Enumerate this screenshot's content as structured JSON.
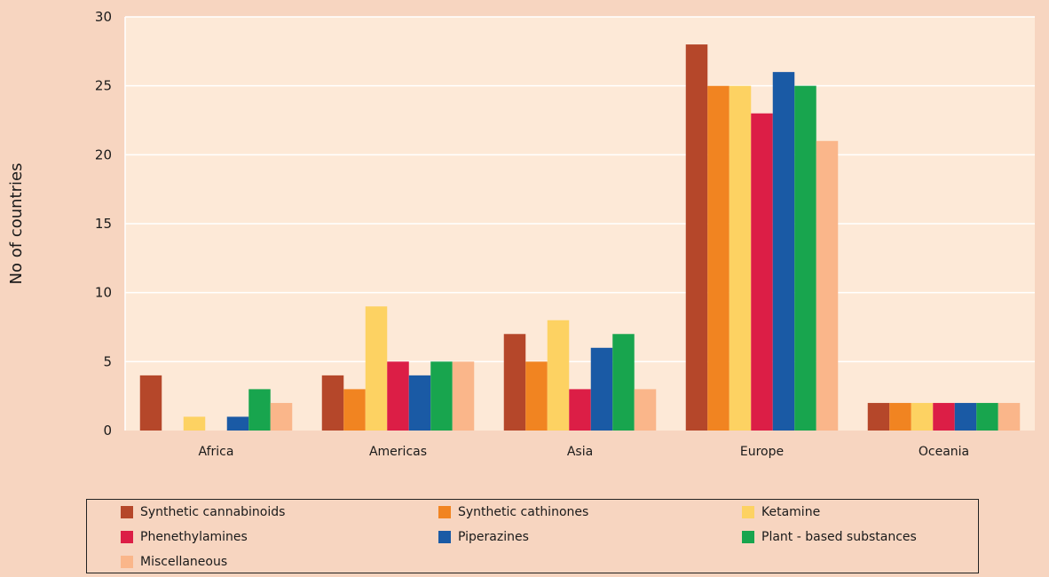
{
  "chart_data": {
    "type": "bar",
    "categories": [
      "Africa",
      "Americas",
      "Asia",
      "Europe",
      "Oceania"
    ],
    "series": [
      {
        "name": "Synthetic cannabinoids",
        "color": "#b5472a",
        "values": [
          4,
          4,
          7,
          28,
          2
        ]
      },
      {
        "name": "Synthetic cathinones",
        "color": "#f18421",
        "values": [
          0,
          3,
          5,
          25,
          2
        ]
      },
      {
        "name": "Ketamine",
        "color": "#fdd262",
        "values": [
          1,
          9,
          8,
          25,
          2
        ]
      },
      {
        "name": "Phenethylamines",
        "color": "#dc1e46",
        "values": [
          0,
          5,
          3,
          23,
          2
        ]
      },
      {
        "name": "Piperazines",
        "color": "#1a5aa5",
        "values": [
          1,
          4,
          6,
          26,
          2
        ]
      },
      {
        "name": "Plant - based substances",
        "color": "#18a54e",
        "values": [
          3,
          5,
          7,
          25,
          2
        ]
      },
      {
        "name": "Miscellaneous",
        "color": "#fab68a",
        "values": [
          2,
          5,
          3,
          21,
          2
        ]
      }
    ],
    "ylabel": "No of countries",
    "xlabel": "",
    "ylim": [
      0,
      30
    ],
    "yticks": [
      0,
      5,
      10,
      15,
      20,
      25,
      30
    ],
    "grid": true,
    "legend_position": "bottom",
    "plot_background": "#fde9d7",
    "page_background": "#f7d5c0"
  }
}
